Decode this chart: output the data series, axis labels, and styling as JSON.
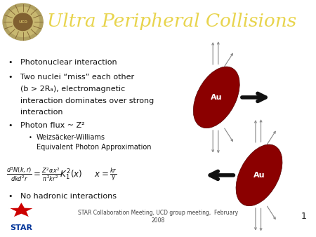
{
  "title": "Ultra Peripheral Collisions",
  "title_color": "#E8D44D",
  "header_bg": "#1a237e",
  "header_accent": "#8a9a2e",
  "body_bg": "#ffffff",
  "footer_bg": "#cc0000",
  "footer_text": "STAR Collaboration Meeting, UCD group meeting,  February\n2008",
  "page_number": "1",
  "nucleus_color": "#8b0000",
  "nucleus_label": "Au",
  "nucleus_label_color": "#ffffff",
  "arrow_color": "#111111",
  "fieldline_color": "#888888",
  "text_color": "#111111",
  "fs_main": 8.0,
  "fs_sub": 7.0,
  "fs_formula": 8.5,
  "logo_bg": "#b0a060",
  "logo_inner": "#c8b870",
  "star_red": "#cc0000",
  "star_blue": "#003399"
}
